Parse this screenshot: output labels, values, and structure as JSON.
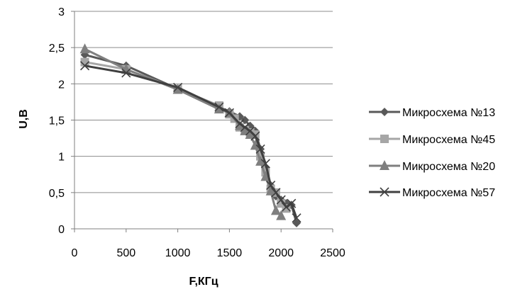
{
  "chart_data": {
    "type": "line",
    "title": "",
    "xlabel": "F,КГц",
    "ylabel": "U,В",
    "xlim": [
      0,
      2500
    ],
    "ylim": [
      0,
      3
    ],
    "x_ticks": [
      "0",
      "500",
      "1000",
      "1500",
      "2000",
      "2500"
    ],
    "y_ticks": [
      "0",
      "0,5",
      "1",
      "1,5",
      "2",
      "2,5",
      "3"
    ],
    "grid": "horizontal",
    "legend_position": "right",
    "series": [
      {
        "name": "Микросхема №13",
        "color": "#595959",
        "marker": "diamond",
        "x": [
          100,
          500,
          1000,
          1400,
          1500,
          1600,
          1650,
          1700,
          1750,
          1800,
          1850,
          1900,
          1950,
          2000,
          2050,
          2100,
          2150
        ],
        "y": [
          2.4,
          2.25,
          1.93,
          1.68,
          1.62,
          1.55,
          1.5,
          1.42,
          1.35,
          1.1,
          0.85,
          0.6,
          0.45,
          0.4,
          0.35,
          0.33,
          0.08
        ]
      },
      {
        "name": "Микросхема №45",
        "color": "#a6a6a6",
        "marker": "square",
        "x": [
          100,
          500,
          1000,
          1400,
          1500,
          1550,
          1600,
          1650,
          1700,
          1750,
          1800,
          1850,
          1900,
          1950,
          2000,
          2050
        ],
        "y": [
          2.3,
          2.2,
          1.93,
          1.7,
          1.58,
          1.52,
          1.4,
          1.36,
          1.33,
          1.3,
          1.0,
          0.78,
          0.55,
          0.5,
          0.35,
          0.28
        ]
      },
      {
        "name": "Микросхема №20",
        "color": "#7f7f7f",
        "marker": "triangle",
        "x": [
          100,
          500,
          1000,
          1400,
          1500,
          1600,
          1650,
          1700,
          1750,
          1800,
          1850,
          1900,
          1950,
          2000
        ],
        "y": [
          2.48,
          2.2,
          1.92,
          1.65,
          1.6,
          1.42,
          1.35,
          1.3,
          1.15,
          0.93,
          0.72,
          0.52,
          0.25,
          0.18
        ]
      },
      {
        "name": "Микросхема №57",
        "color": "#404040",
        "marker": "x",
        "x": [
          100,
          500,
          1000,
          1400,
          1500,
          1600,
          1650,
          1700,
          1750,
          1800,
          1850,
          1900,
          1950,
          2000,
          2050,
          2100,
          2150
        ],
        "y": [
          2.25,
          2.15,
          1.95,
          1.68,
          1.6,
          1.45,
          1.4,
          1.35,
          1.28,
          1.1,
          0.9,
          0.6,
          0.5,
          0.4,
          0.3,
          0.35,
          0.15
        ]
      }
    ]
  }
}
